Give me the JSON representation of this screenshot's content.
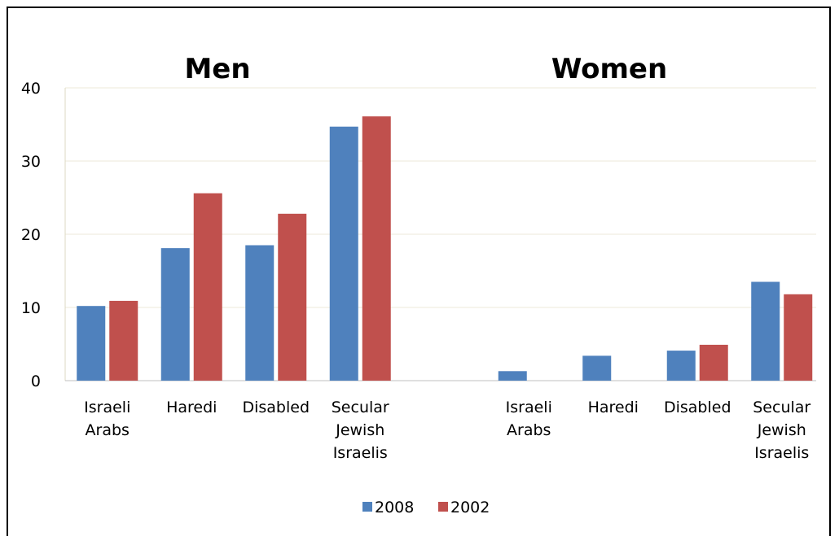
{
  "chart_data": {
    "type": "bar",
    "panels": [
      {
        "title": "Men",
        "categories": [
          "Israeli Arabs",
          "Haredi",
          "Disabled",
          "Secular Jewish Israelis"
        ],
        "series": [
          {
            "name": "2008",
            "values": [
              10.2,
              18.1,
              18.5,
              34.7
            ]
          },
          {
            "name": "2002",
            "values": [
              10.9,
              25.6,
              22.8,
              36.1
            ]
          }
        ]
      },
      {
        "title": "Women",
        "categories": [
          "Israeli Arabs",
          "Haredi",
          "Disabled",
          "Secular Jewish Israelis"
        ],
        "series": [
          {
            "name": "2008",
            "values": [
              1.3,
              3.4,
              4.1,
              13.5
            ]
          },
          {
            "name": "2002",
            "values": [
              0,
              0,
              4.9,
              11.8
            ]
          }
        ]
      }
    ],
    "yticks": [
      0,
      10,
      20,
      30,
      40
    ],
    "ylim": [
      0,
      40
    ],
    "grid": true,
    "legend": "bottom-center",
    "colors": {
      "2008": "#4F81BD",
      "2002": "#C0504D"
    }
  }
}
